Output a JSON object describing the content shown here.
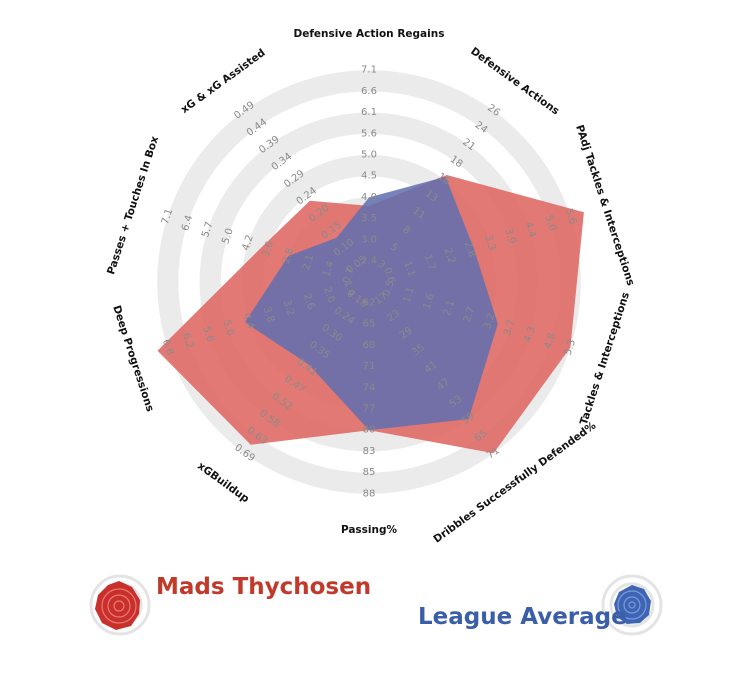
{
  "chart_data": {
    "type": "radar",
    "axes": [
      {
        "label": "Defensive Action Regains",
        "ticks": [
          "2.4",
          "3.0",
          "3.5",
          "4.0",
          "4.5",
          "5.0",
          "5.6",
          "6.1",
          "6.6",
          "7.1"
        ]
      },
      {
        "label": "Defensive Actions",
        "ticks": [
          "3",
          "5",
          "8",
          "11",
          "13",
          "16",
          "18",
          "21",
          "24",
          "26"
        ]
      },
      {
        "label": "PAdj Tackles & Interceptions",
        "ticks": [
          "0.6",
          "1.1",
          "1.7",
          "2.2",
          "2.8",
          "3.3",
          "3.9",
          "4.4",
          "5.0",
          "5.6"
        ]
      },
      {
        "label": "Tackles & Interceptions",
        "ticks": [
          "0.5",
          "1.1",
          "1.6",
          "2.1",
          "2.7",
          "3.2",
          "3.7",
          "4.3",
          "4.8",
          "5.3"
        ]
      },
      {
        "label": "Dribbles Successfully Defended%",
        "ticks": [
          "17",
          "23",
          "29",
          "35",
          "41",
          "47",
          "53",
          "59",
          "65",
          "71"
        ]
      },
      {
        "label": "Passing%",
        "ticks": [
          "62",
          "65",
          "68",
          "71",
          "74",
          "77",
          "80",
          "83",
          "85",
          "88"
        ]
      },
      {
        "label": "xGBuildup",
        "ticks": [
          "0.18",
          "0.24",
          "0.30",
          "0.35",
          "0.41",
          "0.47",
          "0.52",
          "0.58",
          "0.63",
          "0.69"
        ]
      },
      {
        "label": "Deep Progressions",
        "ticks": [
          "1.4",
          "2.0",
          "2.6",
          "3.2",
          "3.8",
          "4.4",
          "5.0",
          "5.6",
          "6.2",
          "6.8"
        ]
      },
      {
        "label": "Passes + Touches In Box",
        "ticks": [
          "0.7",
          "1.4",
          "2.1",
          "2.8",
          "3.6",
          "4.2",
          "5.0",
          "5.7",
          "6.4",
          "7.1"
        ]
      },
      {
        "label": "xG & xG Assisted",
        "ticks": [
          "0.05",
          "0.10",
          "0.15",
          "0.20",
          "0.24",
          "0.29",
          "0.34",
          "0.39",
          "0.44",
          "0.49"
        ]
      }
    ],
    "series": [
      {
        "name": "Mads Thychosen",
        "color": "#e06a66",
        "values": [
          3.8,
          16.5,
          6.0,
          5.3,
          71,
          80,
          0.66,
          7.1,
          3.8,
          0.23
        ]
      },
      {
        "name": "League Average",
        "color": "#5f6fb0",
        "values": [
          4.0,
          16.3,
          2.9,
          3.4,
          59,
          80,
          0.4,
          4.5,
          2.8,
          0.13
        ]
      }
    ],
    "ring_count": 10
  },
  "legend": {
    "player": "Mads Thychosen",
    "average": "League Average",
    "player_color": "#c0392b",
    "average_color": "#3a5fa8"
  }
}
